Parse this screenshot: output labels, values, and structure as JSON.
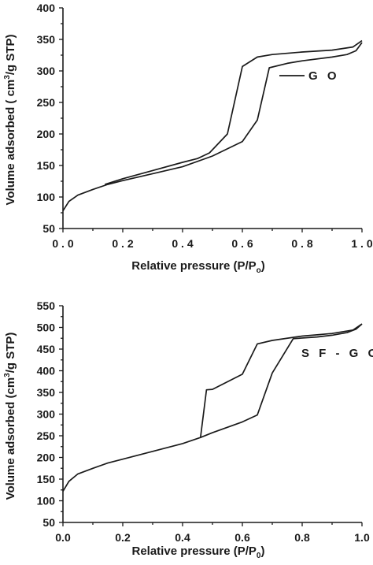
{
  "chart_data": [
    {
      "type": "line",
      "xlabel": "Relative pressure (P/Po)",
      "xlabel_parts": {
        "main": "Relative pressure (P/P",
        "sub": "o",
        "close": ")"
      },
      "ylabel": "Volume adsorbed ( cm3/g STP)",
      "ylabel_parts": {
        "pre": "Volume adsorbed ( cm",
        "sup": "3",
        "post": "/g STP)"
      },
      "xlim": [
        0.0,
        1.0
      ],
      "ylim": [
        50,
        400
      ],
      "xticks": [
        0.0,
        0.2,
        0.4,
        0.6,
        0.8,
        1.0
      ],
      "xtick_labels": [
        "0 . 0",
        "0 . 2",
        "0 . 4",
        "0 . 6",
        "0 . 8",
        "1 . 0"
      ],
      "yticks": [
        50,
        100,
        150,
        200,
        250,
        300,
        350,
        400
      ],
      "ytick_labels": [
        "50",
        "100",
        "150",
        "200",
        "250",
        "300",
        "350",
        "400"
      ],
      "grid": false,
      "legend_position": "right",
      "series": [
        {
          "name": "G O",
          "branches": [
            {
              "x": [
                0.0,
                0.02,
                0.05,
                0.1,
                0.15,
                0.2,
                0.3,
                0.4,
                0.5,
                0.6,
                0.65,
                0.69,
                0.75,
                0.8,
                0.9,
                0.95,
                0.98,
                1.0
              ],
              "y": [
                78,
                93,
                103,
                112,
                120,
                126,
                137,
                148,
                165,
                188,
                222,
                305,
                312,
                316,
                322,
                326,
                332,
                345
              ]
            },
            {
              "x": [
                1.0,
                0.97,
                0.9,
                0.8,
                0.7,
                0.65,
                0.6,
                0.55,
                0.49,
                0.45,
                0.4,
                0.3,
                0.2,
                0.14
              ],
              "y": [
                348,
                338,
                333,
                330,
                326,
                322,
                307,
                200,
                170,
                161,
                155,
                142,
                129,
                120
              ]
            }
          ]
        }
      ]
    },
    {
      "type": "line",
      "xlabel": "Relative pressure (P/P0)",
      "xlabel_parts": {
        "main": "Relative pressure (P/P",
        "sub": "0",
        "close": ")"
      },
      "ylabel": "Volume adsorbed (cm3/g STP)",
      "ylabel_parts": {
        "pre": "Volume adsorbed (cm",
        "sup": "3",
        "post": "/g STP)"
      },
      "xlim": [
        0.0,
        1.0
      ],
      "ylim": [
        50,
        550
      ],
      "xticks": [
        0.0,
        0.2,
        0.4,
        0.6,
        0.8,
        1.0
      ],
      "xtick_labels": [
        "0.0",
        "0.2",
        "0.4",
        "0.6",
        "0.8",
        "1.0"
      ],
      "yticks": [
        50,
        100,
        150,
        200,
        250,
        300,
        350,
        400,
        450,
        500,
        550
      ],
      "ytick_labels": [
        "50",
        "100",
        "150",
        "200",
        "250",
        "300",
        "350",
        "400",
        "450",
        "500",
        "550"
      ],
      "grid": false,
      "legend_position": "right",
      "series": [
        {
          "name": "S F - G O C",
          "branches": [
            {
              "x": [
                0.0,
                0.02,
                0.05,
                0.1,
                0.15,
                0.2,
                0.3,
                0.4,
                0.46,
                0.5,
                0.6,
                0.65,
                0.7,
                0.77,
                0.85,
                0.9,
                0.95,
                0.98,
                1.0
              ],
              "y": [
                122,
                145,
                162,
                175,
                187,
                196,
                214,
                232,
                246,
                257,
                282,
                298,
                395,
                474,
                478,
                482,
                488,
                496,
                508
              ]
            },
            {
              "x": [
                1.0,
                0.97,
                0.9,
                0.8,
                0.7,
                0.65,
                0.6,
                0.5,
                0.48,
                0.46
              ],
              "y": [
                508,
                494,
                486,
                480,
                470,
                462,
                392,
                357,
                356,
                246
              ]
            }
          ]
        }
      ]
    }
  ]
}
